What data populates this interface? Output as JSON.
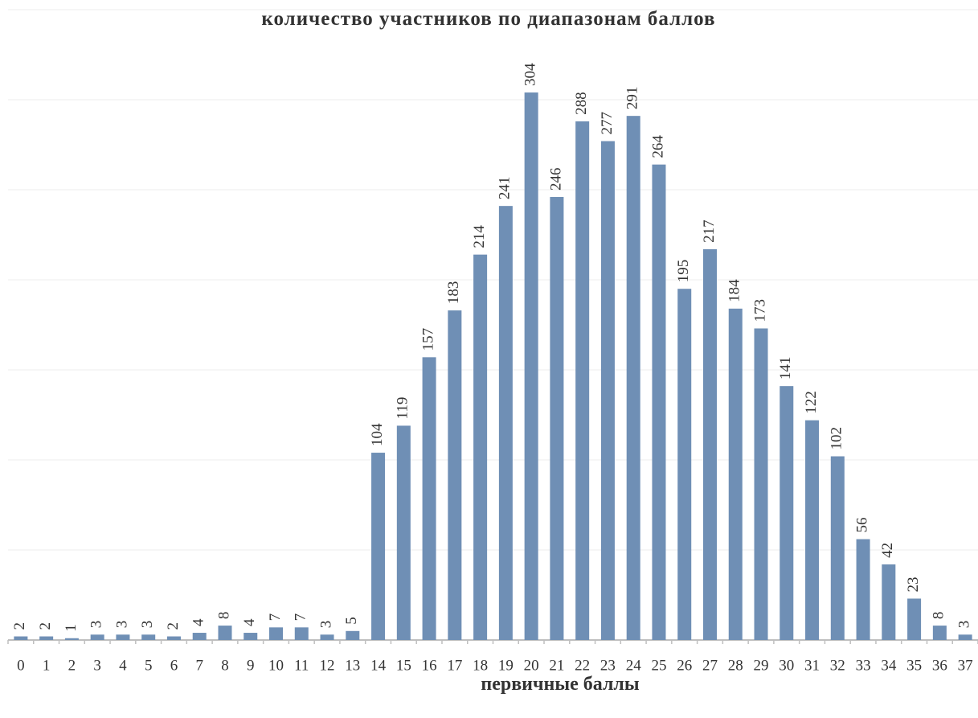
{
  "chart_data": {
    "type": "bar",
    "title": "количество участников по диапазонам баллов",
    "x_label": "первичные баллы",
    "categories": [
      "0",
      "1",
      "2",
      "3",
      "4",
      "5",
      "6",
      "7",
      "8",
      "9",
      "10",
      "11",
      "12",
      "13",
      "14",
      "15",
      "16",
      "17",
      "18",
      "19",
      "20",
      "21",
      "22",
      "23",
      "24",
      "25",
      "26",
      "27",
      "28",
      "29",
      "30",
      "31",
      "32",
      "33",
      "34",
      "35",
      "36",
      "37"
    ],
    "values": [
      2,
      2,
      1,
      3,
      3,
      3,
      2,
      4,
      8,
      4,
      7,
      7,
      3,
      5,
      104,
      119,
      157,
      183,
      214,
      241,
      304,
      246,
      288,
      277,
      291,
      264,
      195,
      217,
      184,
      173,
      141,
      122,
      102,
      56,
      42,
      23,
      8,
      3
    ],
    "color": "#6f8fb5",
    "ylim": [
      0,
      350
    ],
    "yticks": [
      0,
      50,
      100,
      150,
      200,
      250,
      300,
      350
    ],
    "grid": true
  }
}
